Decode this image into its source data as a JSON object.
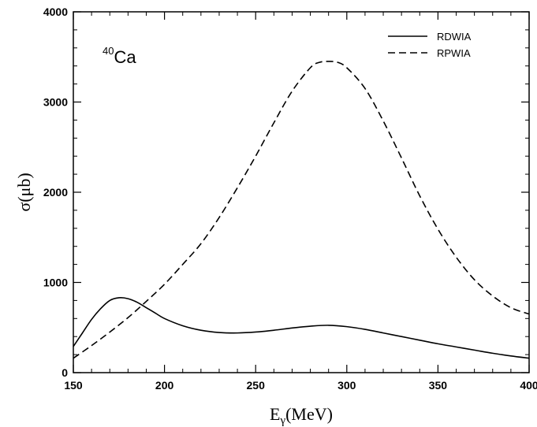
{
  "chart_data": {
    "type": "line",
    "xlabel_main": "E",
    "xlabel_sub": "γ",
    "xlabel_unit": "(MeV)",
    "ylabel": "σ(μb)",
    "xlim": [
      150,
      400
    ],
    "ylim": [
      0,
      4000
    ],
    "x_ticks": [
      150,
      200,
      250,
      300,
      350,
      400
    ],
    "y_ticks": [
      0,
      1000,
      2000,
      3000,
      4000
    ],
    "x_minor_step": 10,
    "y_minor_step": 200,
    "annotation": {
      "sup": "40",
      "text": "Ca"
    },
    "legend_position": "top-right",
    "series": [
      {
        "name": "RDWIA",
        "dash": "solid",
        "x": [
          150,
          155,
          160,
          165,
          170,
          175,
          180,
          185,
          190,
          195,
          200,
          210,
          220,
          230,
          240,
          250,
          260,
          270,
          280,
          290,
          300,
          310,
          320,
          330,
          340,
          350,
          360,
          370,
          380,
          390,
          400
        ],
        "y": [
          290,
          440,
          590,
          710,
          800,
          830,
          820,
          780,
          720,
          660,
          600,
          520,
          470,
          445,
          440,
          450,
          470,
          495,
          515,
          525,
          510,
          480,
          440,
          400,
          360,
          320,
          285,
          250,
          215,
          185,
          160
        ]
      },
      {
        "name": "RPWIA",
        "dash": "dashed",
        "x": [
          150,
          160,
          170,
          180,
          190,
          200,
          210,
          220,
          230,
          240,
          250,
          260,
          270,
          280,
          285,
          290,
          295,
          300,
          310,
          320,
          330,
          340,
          350,
          360,
          370,
          380,
          390,
          400
        ],
        "y": [
          160,
          300,
          450,
          610,
          790,
          980,
          1200,
          1430,
          1720,
          2050,
          2400,
          2770,
          3120,
          3380,
          3440,
          3450,
          3440,
          3380,
          3150,
          2790,
          2380,
          1960,
          1590,
          1280,
          1030,
          850,
          720,
          650
        ]
      }
    ]
  }
}
